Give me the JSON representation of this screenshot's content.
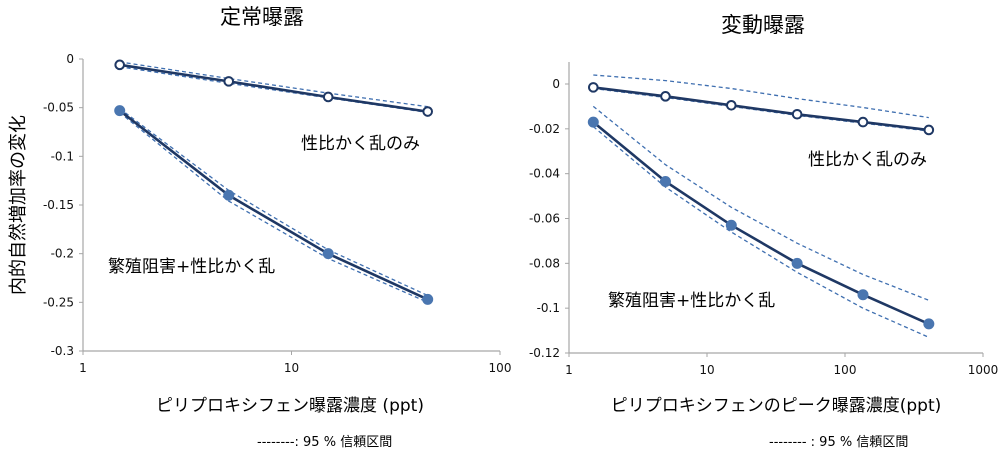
{
  "y_axis_label": "内的自然増加率の変化",
  "colors": {
    "line": "#1f3864",
    "filled_marker": "#4a76b0",
    "ci": "#3f6fb0",
    "axis": "#a6a6a6"
  },
  "chart_data": [
    {
      "type": "line",
      "title": "定常曝露",
      "xlabel": "ピリプロキシフェン曝露濃度 (ppt)",
      "ylabel": "内的自然増加率の変化",
      "xscale": "log",
      "xlim": [
        1,
        100
      ],
      "ylim": [
        -0.3,
        0
      ],
      "xticks": [
        1,
        10,
        100
      ],
      "xtick_labels": [
        "1",
        "10",
        "100"
      ],
      "yticks": [
        0,
        -0.05,
        -0.1,
        -0.15,
        -0.2,
        -0.25,
        -0.3
      ],
      "ytick_labels": [
        "0",
        "-0.05",
        "-0.1",
        "-0.15",
        "-0.2",
        "-0.25",
        "-0.3"
      ],
      "grid": false,
      "legend_note": "--------: 95 % 信頼区間",
      "x": [
        1.5,
        5,
        15,
        45
      ],
      "series": [
        {
          "name": "性比かく乱のみ",
          "marker": "open-circle",
          "values": [
            -0.006,
            -0.023,
            -0.039,
            -0.054
          ],
          "ci_upper": [
            -0.003,
            -0.02,
            -0.035,
            -0.049
          ],
          "ci_lower": [
            -0.008,
            -0.025,
            -0.04,
            -0.055
          ]
        },
        {
          "name": "繁殖阻害+性比かく乱",
          "marker": "filled-circle",
          "values": [
            -0.053,
            -0.14,
            -0.2,
            -0.247
          ],
          "ci_upper": [
            -0.051,
            -0.135,
            -0.196,
            -0.243
          ],
          "ci_lower": [
            -0.055,
            -0.146,
            -0.205,
            -0.25
          ]
        }
      ],
      "annotations": [
        {
          "text": "性比かく乱のみ",
          "x": 22,
          "y": -0.087
        },
        {
          "text": "繁殖阻害+性比かく乱",
          "x": 1.45,
          "y": -0.217
        }
      ]
    },
    {
      "type": "line",
      "title": "変動曝露",
      "xlabel": "ピリプロキシフェンのピーク曝露濃度(ppt)",
      "ylabel": "",
      "xscale": "log",
      "xlim": [
        1,
        1000
      ],
      "ylim": [
        -0.12,
        0.01
      ],
      "xticks": [
        1,
        10,
        100,
        1000
      ],
      "xtick_labels": [
        "1",
        "10",
        "100",
        "1000"
      ],
      "yticks": [
        0,
        -0.02,
        -0.04,
        -0.06,
        -0.08,
        -0.1,
        -0.12
      ],
      "ytick_labels": [
        "0",
        "-0.02",
        "-0.04",
        "-0.06",
        "-0.08",
        "-0.1",
        "-0.12"
      ],
      "grid": false,
      "legend_note": "-------- : 95 % 信頼区間",
      "x": [
        1.5,
        5,
        15,
        45,
        135,
        405
      ],
      "series": [
        {
          "name": "性比かく乱のみ",
          "marker": "open-circle",
          "values": [
            -0.0015,
            -0.0055,
            -0.0095,
            -0.0135,
            -0.017,
            -0.0205
          ],
          "ci_upper": [
            0.004,
            0.0015,
            -0.002,
            -0.0065,
            -0.0105,
            -0.015
          ],
          "ci_lower": [
            -0.002,
            -0.006,
            -0.01,
            -0.014,
            -0.0175,
            -0.021
          ]
        },
        {
          "name": "繁殖阻害+性比かく乱",
          "marker": "filled-circle",
          "values": [
            -0.017,
            -0.0435,
            -0.063,
            -0.08,
            -0.094,
            -0.107
          ],
          "ci_upper": [
            -0.01,
            -0.036,
            -0.055,
            -0.071,
            -0.085,
            -0.0965
          ],
          "ci_lower": [
            -0.019,
            -0.046,
            -0.066,
            -0.084,
            -0.1,
            -0.113
          ]
        }
      ],
      "annotations": [
        {
          "text": "性比かく乱のみ",
          "x": 50,
          "y": -0.0315
        },
        {
          "text": "繁殖阻害+性比かく乱",
          "x": 1.9,
          "y": -0.1
        }
      ]
    }
  ]
}
